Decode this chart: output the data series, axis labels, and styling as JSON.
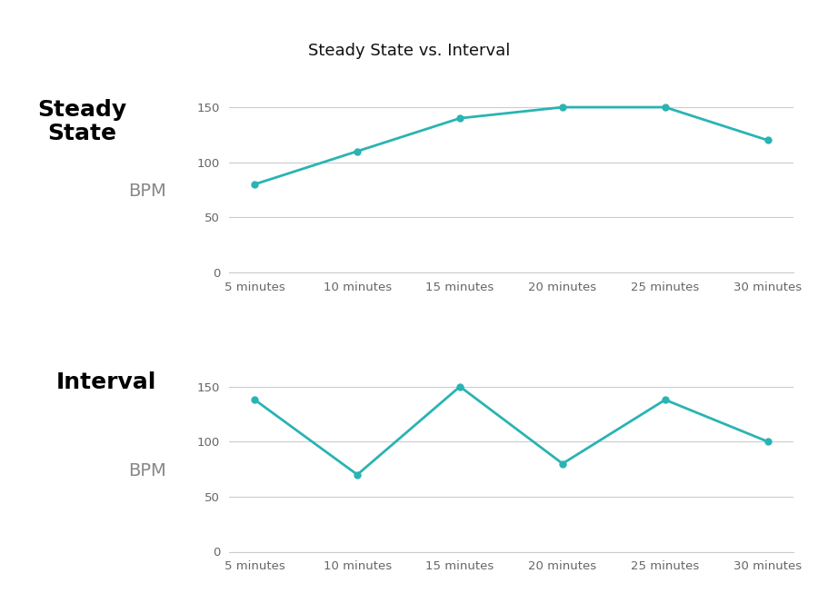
{
  "title": "Steady State vs. Interval",
  "title_fontsize": 13,
  "x_labels": [
    "5 minutes",
    "10 minutes",
    "15 minutes",
    "20 minutes",
    "25 minutes",
    "30 minutes"
  ],
  "steady_state": {
    "label": "Steady\nState",
    "bpm_label": "BPM",
    "values": [
      80,
      110,
      140,
      150,
      150,
      120
    ],
    "color": "#2ab3b3"
  },
  "interval": {
    "label": "Interval",
    "bpm_label": "BPM",
    "values": [
      138,
      70,
      150,
      80,
      138,
      100
    ],
    "color": "#2ab3b3"
  },
  "ylim": [
    0,
    175
  ],
  "yticks": [
    0,
    50,
    100,
    150
  ],
  "background_color": "#ffffff",
  "grid_color": "#cccccc",
  "line_width": 2,
  "marker": "o",
  "marker_size": 5
}
